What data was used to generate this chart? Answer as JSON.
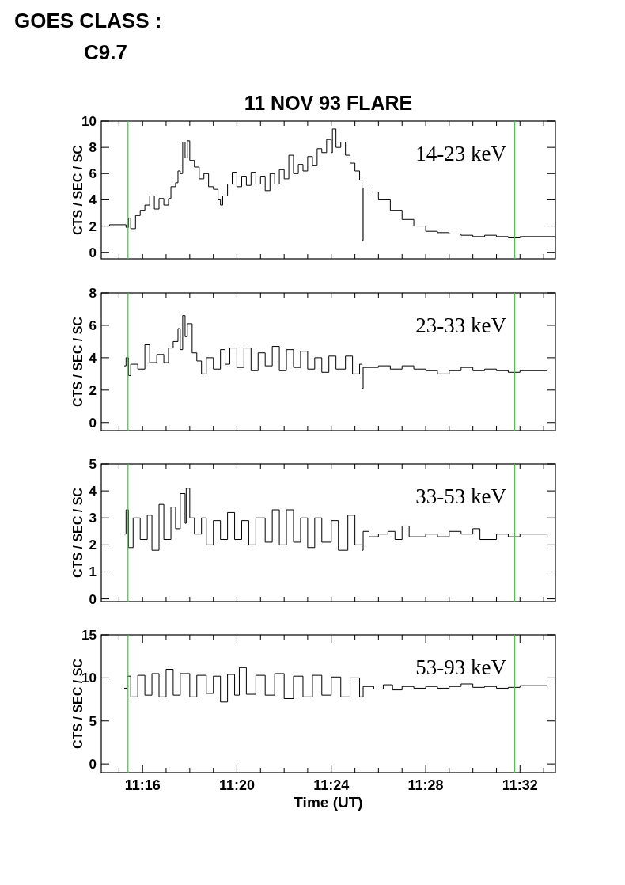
{
  "chart_data": [
    {
      "type": "step",
      "title": "11 NOV 93 FLARE",
      "annotations": [
        "GOES CLASS :",
        "C9.7"
      ],
      "ylabel": "CTS / SEC / SC",
      "tick_labels": "y",
      "xlim": [
        11.2375,
        11.5583
      ],
      "ylim": [
        -0.5,
        10
      ],
      "yticks": [
        0,
        2,
        4,
        6,
        8,
        10
      ],
      "xticks": [
        {
          "value": 11.25,
          "label": null
        },
        {
          "value": 11.2667,
          "label": null
        },
        {
          "value": 11.2833,
          "label": null
        },
        {
          "value": 11.3,
          "label": null
        },
        {
          "value": 11.3167,
          "label": null
        },
        {
          "value": 11.3333,
          "label": null
        },
        {
          "value": 11.35,
          "label": null
        },
        {
          "value": 11.3667,
          "label": null
        },
        {
          "value": 11.3833,
          "label": null
        },
        {
          "value": 11.4,
          "label": null
        },
        {
          "value": 11.4167,
          "label": null
        },
        {
          "value": 11.4333,
          "label": null
        },
        {
          "value": 11.45,
          "label": null
        },
        {
          "value": 11.4667,
          "label": null
        },
        {
          "value": 11.4833,
          "label": null
        },
        {
          "value": 11.5,
          "label": null
        },
        {
          "value": 11.5167,
          "label": null
        },
        {
          "value": 11.5333,
          "label": null
        },
        {
          "value": 11.55,
          "label": null
        }
      ],
      "ref_lines": [
        {
          "axis": "x",
          "value": 11.2564,
          "color": "#33cc33"
        },
        {
          "axis": "x",
          "value": 11.5296,
          "color": "#33cc33"
        }
      ],
      "series": [
        {
          "name": "14-23 keV",
          "color": "#000000",
          "x": [
            11.2375,
            11.2433,
            11.2533,
            11.255,
            11.2567,
            11.2583,
            11.2617,
            11.265,
            11.2683,
            11.2717,
            11.275,
            11.2783,
            11.2817,
            11.285,
            11.2867,
            11.29,
            11.2917,
            11.2933,
            11.295,
            11.2967,
            11.2983,
            11.3,
            11.3033,
            11.3067,
            11.31,
            11.3133,
            11.3167,
            11.32,
            11.3217,
            11.3233,
            11.3267,
            11.33,
            11.3333,
            11.3367,
            11.34,
            11.3433,
            11.3467,
            11.35,
            11.3533,
            11.3567,
            11.36,
            11.3633,
            11.3667,
            11.37,
            11.3733,
            11.3767,
            11.38,
            11.3833,
            11.3867,
            11.39,
            11.3933,
            11.3967,
            11.4,
            11.4008,
            11.4033,
            11.4067,
            11.41,
            11.4133,
            11.4167,
            11.42,
            11.4217,
            11.4218,
            11.4225,
            11.4267,
            11.4333,
            11.4417,
            11.45,
            11.4583,
            11.4667,
            11.475,
            11.4833,
            11.4917,
            11.5,
            11.5083,
            11.5167,
            11.525,
            11.5333,
            11.5583
          ],
          "values": [
            2.0,
            2.1,
            2.1,
            1.9,
            2.6,
            1.8,
            2.8,
            3.2,
            3.6,
            4.3,
            3.3,
            4.1,
            3.6,
            4.1,
            5.0,
            5.3,
            6.2,
            6.0,
            8.4,
            7.2,
            8.5,
            7.0,
            6.5,
            5.6,
            6.0,
            5.0,
            4.8,
            4.0,
            3.6,
            4.3,
            5.2,
            6.1,
            5.0,
            5.8,
            5.1,
            6.1,
            5.2,
            5.8,
            4.7,
            6.0,
            5.2,
            6.3,
            5.6,
            7.4,
            6.0,
            6.7,
            6.2,
            7.3,
            6.6,
            7.9,
            7.6,
            8.6,
            7.6,
            9.4,
            8.0,
            8.4,
            7.4,
            6.8,
            6.2,
            5.5,
            4.8,
            0.9,
            4.9,
            4.6,
            4.0,
            3.2,
            2.5,
            2.0,
            1.6,
            1.5,
            1.4,
            1.3,
            1.2,
            1.3,
            1.2,
            1.1,
            1.2,
            1.1
          ]
        }
      ]
    },
    {
      "type": "step",
      "ylabel": "CTS / SEC / SC",
      "tick_labels": "y",
      "xlim": [
        11.2375,
        11.5583
      ],
      "ylim": [
        -0.5,
        8
      ],
      "yticks": [
        0,
        2,
        4,
        6,
        8
      ],
      "xticks": [
        {
          "value": 11.25,
          "label": null
        },
        {
          "value": 11.2667,
          "label": null
        },
        {
          "value": 11.2833,
          "label": null
        },
        {
          "value": 11.3,
          "label": null
        },
        {
          "value": 11.3167,
          "label": null
        },
        {
          "value": 11.3333,
          "label": null
        },
        {
          "value": 11.35,
          "label": null
        },
        {
          "value": 11.3667,
          "label": null
        },
        {
          "value": 11.3833,
          "label": null
        },
        {
          "value": 11.4,
          "label": null
        },
        {
          "value": 11.4167,
          "label": null
        },
        {
          "value": 11.4333,
          "label": null
        },
        {
          "value": 11.45,
          "label": null
        },
        {
          "value": 11.4667,
          "label": null
        },
        {
          "value": 11.4833,
          "label": null
        },
        {
          "value": 11.5,
          "label": null
        },
        {
          "value": 11.5167,
          "label": null
        },
        {
          "value": 11.5333,
          "label": null
        },
        {
          "value": 11.55,
          "label": null
        }
      ],
      "ref_lines": [
        {
          "axis": "x",
          "value": 11.2564,
          "color": "#33cc33"
        },
        {
          "axis": "x",
          "value": 11.5296,
          "color": "#33cc33"
        }
      ],
      "series": [
        {
          "name": "23-33 keV",
          "color": "#000000",
          "x": [
            11.2537,
            11.255,
            11.2567,
            11.2583,
            11.2633,
            11.2683,
            11.2717,
            11.2767,
            11.2817,
            11.285,
            11.2883,
            11.2917,
            11.2933,
            11.295,
            11.2967,
            11.2983,
            11.3017,
            11.305,
            11.3083,
            11.3117,
            11.3167,
            11.3217,
            11.325,
            11.3283,
            11.3333,
            11.3383,
            11.3433,
            11.3483,
            11.3533,
            11.3583,
            11.3633,
            11.3683,
            11.3733,
            11.3783,
            11.3833,
            11.3883,
            11.3933,
            11.3983,
            11.4033,
            11.41,
            11.415,
            11.42,
            11.4217,
            11.4225,
            11.4333,
            11.4417,
            11.45,
            11.4583,
            11.4667,
            11.475,
            11.4833,
            11.4917,
            11.5,
            11.5083,
            11.5167,
            11.525,
            11.5333,
            11.5525
          ],
          "values": [
            3.5,
            4.0,
            2.9,
            3.6,
            3.3,
            4.8,
            3.7,
            4.2,
            3.7,
            4.6,
            5.0,
            5.8,
            4.5,
            6.6,
            5.3,
            6.1,
            4.3,
            3.8,
            3.0,
            4.0,
            3.3,
            4.5,
            3.6,
            4.6,
            3.4,
            4.6,
            3.2,
            4.3,
            3.5,
            4.7,
            3.2,
            4.5,
            3.4,
            4.4,
            3.3,
            4.0,
            3.1,
            4.1,
            3.3,
            4.1,
            3.0,
            3.6,
            2.1,
            3.4,
            3.5,
            3.3,
            3.5,
            3.3,
            3.2,
            3.0,
            3.2,
            3.4,
            3.2,
            3.3,
            3.2,
            3.1,
            3.2,
            3.3
          ]
        }
      ]
    },
    {
      "type": "step",
      "ylabel": "CTS / SEC / SC",
      "tick_labels": "y",
      "xlim": [
        11.2375,
        11.5583
      ],
      "ylim": [
        -0.1,
        5
      ],
      "yticks": [
        0,
        1,
        2,
        3,
        4,
        5
      ],
      "xticks": [
        {
          "value": 11.25,
          "label": null
        },
        {
          "value": 11.2667,
          "label": null
        },
        {
          "value": 11.2833,
          "label": null
        },
        {
          "value": 11.3,
          "label": null
        },
        {
          "value": 11.3167,
          "label": null
        },
        {
          "value": 11.3333,
          "label": null
        },
        {
          "value": 11.35,
          "label": null
        },
        {
          "value": 11.3667,
          "label": null
        },
        {
          "value": 11.3833,
          "label": null
        },
        {
          "value": 11.4,
          "label": null
        },
        {
          "value": 11.4167,
          "label": null
        },
        {
          "value": 11.4333,
          "label": null
        },
        {
          "value": 11.45,
          "label": null
        },
        {
          "value": 11.4667,
          "label": null
        },
        {
          "value": 11.4833,
          "label": null
        },
        {
          "value": 11.5,
          "label": null
        },
        {
          "value": 11.5167,
          "label": null
        },
        {
          "value": 11.5333,
          "label": null
        },
        {
          "value": 11.55,
          "label": null
        }
      ],
      "ref_lines": [
        {
          "axis": "x",
          "value": 11.2564,
          "color": "#33cc33"
        },
        {
          "axis": "x",
          "value": 11.5296,
          "color": "#33cc33"
        }
      ],
      "series": [
        {
          "name": "33-53 keV",
          "color": "#000000",
          "x": [
            11.2537,
            11.255,
            11.2567,
            11.26,
            11.265,
            11.27,
            11.2733,
            11.2783,
            11.2817,
            11.2867,
            11.29,
            11.2933,
            11.2967,
            11.2975,
            11.3,
            11.3033,
            11.3083,
            11.3117,
            11.3167,
            11.3217,
            11.3267,
            11.3317,
            11.3367,
            11.3417,
            11.3467,
            11.3533,
            11.3583,
            11.3633,
            11.3683,
            11.3733,
            11.3783,
            11.3833,
            11.3883,
            11.3933,
            11.4,
            11.405,
            11.4117,
            11.4167,
            11.4217,
            11.4225,
            11.4267,
            11.4333,
            11.44,
            11.445,
            11.45,
            11.455,
            11.4667,
            11.475,
            11.4833,
            11.4917,
            11.5,
            11.505,
            11.5167,
            11.525,
            11.5333,
            11.5525
          ],
          "values": [
            2.4,
            3.3,
            1.9,
            3.0,
            2.2,
            3.1,
            1.8,
            3.5,
            2.2,
            3.4,
            2.6,
            3.9,
            2.8,
            4.1,
            3.0,
            2.4,
            3.0,
            2.0,
            2.9,
            2.2,
            3.2,
            2.2,
            2.9,
            2.0,
            3.0,
            2.1,
            3.3,
            2.0,
            3.3,
            2.1,
            3.0,
            1.9,
            3.0,
            2.1,
            2.9,
            1.8,
            3.1,
            2.0,
            1.8,
            2.5,
            2.3,
            2.4,
            2.5,
            2.2,
            2.7,
            2.3,
            2.4,
            2.3,
            2.5,
            2.4,
            2.6,
            2.2,
            2.4,
            2.3,
            2.4,
            2.3
          ]
        }
      ]
    },
    {
      "type": "step",
      "ylabel": "CTS / SEC / SC",
      "xlabel": "Time (UT)",
      "xlim": [
        11.2375,
        11.5583
      ],
      "ylim": [
        -1,
        15
      ],
      "yticks": [
        0,
        5,
        10,
        15
      ],
      "xticks": [
        {
          "value": 11.25,
          "label": null
        },
        {
          "value": 11.2667,
          "label": "11:16"
        },
        {
          "value": 11.2833,
          "label": null
        },
        {
          "value": 11.3,
          "label": null
        },
        {
          "value": 11.3167,
          "label": null
        },
        {
          "value": 11.3333,
          "label": "11:20"
        },
        {
          "value": 11.35,
          "label": null
        },
        {
          "value": 11.3667,
          "label": null
        },
        {
          "value": 11.3833,
          "label": null
        },
        {
          "value": 11.4,
          "label": "11:24"
        },
        {
          "value": 11.4167,
          "label": null
        },
        {
          "value": 11.4333,
          "label": null
        },
        {
          "value": 11.45,
          "label": null
        },
        {
          "value": 11.4667,
          "label": "11:28"
        },
        {
          "value": 11.4833,
          "label": null
        },
        {
          "value": 11.5,
          "label": null
        },
        {
          "value": 11.5167,
          "label": null
        },
        {
          "value": 11.5333,
          "label": "11:32"
        },
        {
          "value": 11.55,
          "label": null
        }
      ],
      "ref_lines": [
        {
          "axis": "x",
          "value": 11.2564,
          "color": "#33cc33"
        },
        {
          "axis": "x",
          "value": 11.5296,
          "color": "#33cc33"
        }
      ],
      "series": [
        {
          "name": "53-93 keV",
          "color": "#000000",
          "x": [
            11.2537,
            11.2558,
            11.2583,
            11.2633,
            11.2683,
            11.2733,
            11.2783,
            11.2833,
            11.2883,
            11.2933,
            11.3,
            11.305,
            11.3117,
            11.3167,
            11.3217,
            11.3267,
            11.3317,
            11.335,
            11.34,
            11.3467,
            11.3533,
            11.36,
            11.3667,
            11.3733,
            11.38,
            11.3867,
            11.3933,
            11.4,
            11.4067,
            11.4133,
            11.42,
            11.4225,
            11.43,
            11.4367,
            11.4433,
            11.45,
            11.4583,
            11.4667,
            11.475,
            11.4833,
            11.4917,
            11.5,
            11.5083,
            11.5167,
            11.525,
            11.5333,
            11.5525
          ],
          "values": [
            8.8,
            10.2,
            7.8,
            10.3,
            8.0,
            10.5,
            7.8,
            11.0,
            8.0,
            10.5,
            7.8,
            10.3,
            8.2,
            10.2,
            7.2,
            10.4,
            8.0,
            11.2,
            8.1,
            10.3,
            8.0,
            10.5,
            7.6,
            10.2,
            7.8,
            10.3,
            8.0,
            10.1,
            7.8,
            10.0,
            7.8,
            9.0,
            8.7,
            9.2,
            8.6,
            9.0,
            8.8,
            9.0,
            8.8,
            9.0,
            9.3,
            8.9,
            9.0,
            8.8,
            8.9,
            9.1,
            8.8
          ]
        }
      ]
    }
  ]
}
